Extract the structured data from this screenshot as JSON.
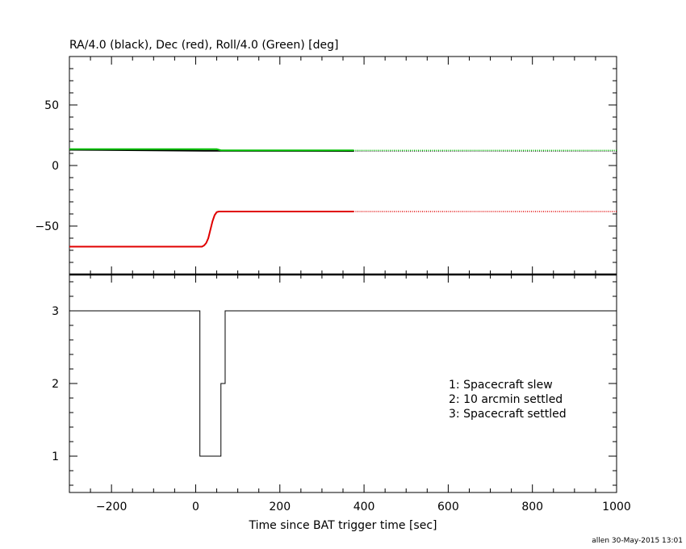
{
  "chart_data": [
    {
      "type": "line",
      "title": "RA/4.0 (black), Dec (red), Roll/4.0 (Green) [deg]",
      "xlim": [
        -300,
        1000
      ],
      "ylim": [
        -90,
        90
      ],
      "yticks": [
        "50",
        "0",
        "−50"
      ],
      "ytick_values": [
        50,
        0,
        -50
      ],
      "colors": {
        "ra": "#000000",
        "dec": "#e00000",
        "roll": "#00c000"
      },
      "series": [
        {
          "key": "ra",
          "color": "#000000",
          "x": [
            -300,
            20,
            375
          ],
          "y": [
            13,
            12.2,
            12
          ],
          "dotted_from_x": 375,
          "dotted_to_x": 1000
        },
        {
          "key": "dec",
          "color": "#e00000",
          "x": [
            -300,
            15,
            20,
            25,
            30,
            35,
            40,
            45,
            50,
            55,
            60,
            375
          ],
          "y": [
            -67,
            -67,
            -66,
            -64,
            -60,
            -53,
            -46,
            -41,
            -38.5,
            -38,
            -38,
            -38
          ],
          "dotted_from_x": 375,
          "dotted_to_x": 1000
        },
        {
          "key": "roll",
          "color": "#00c000",
          "x": [
            -300,
            50,
            60,
            375
          ],
          "y": [
            13.5,
            13.5,
            12.5,
            12.5
          ],
          "dotted_from_x": 375,
          "dotted_to_x": 1000
        }
      ]
    },
    {
      "type": "line",
      "xlabel": "Time since BAT trigger time [sec]",
      "xlim": [
        -300,
        1000
      ],
      "ylim": [
        0.5,
        3.5
      ],
      "xticks": [
        "−200",
        "0",
        "200",
        "400",
        "600",
        "800",
        "1000"
      ],
      "xtick_values": [
        -200,
        0,
        200,
        400,
        600,
        800,
        1000
      ],
      "yticks": [
        "3",
        "2",
        "1"
      ],
      "ytick_values": [
        3,
        2,
        1
      ],
      "series": [
        {
          "key": "mode",
          "color": "#000000",
          "step": true,
          "x": [
            -300,
            10,
            60,
            70,
            1000
          ],
          "y": [
            3,
            1,
            2,
            3,
            3
          ]
        }
      ],
      "legend": [
        "1: Spacecraft slew",
        "2: 10 arcmin settled",
        "3: Spacecraft settled"
      ],
      "legend_position": "right"
    }
  ],
  "footer": "allen 30-May-2015 13:01"
}
